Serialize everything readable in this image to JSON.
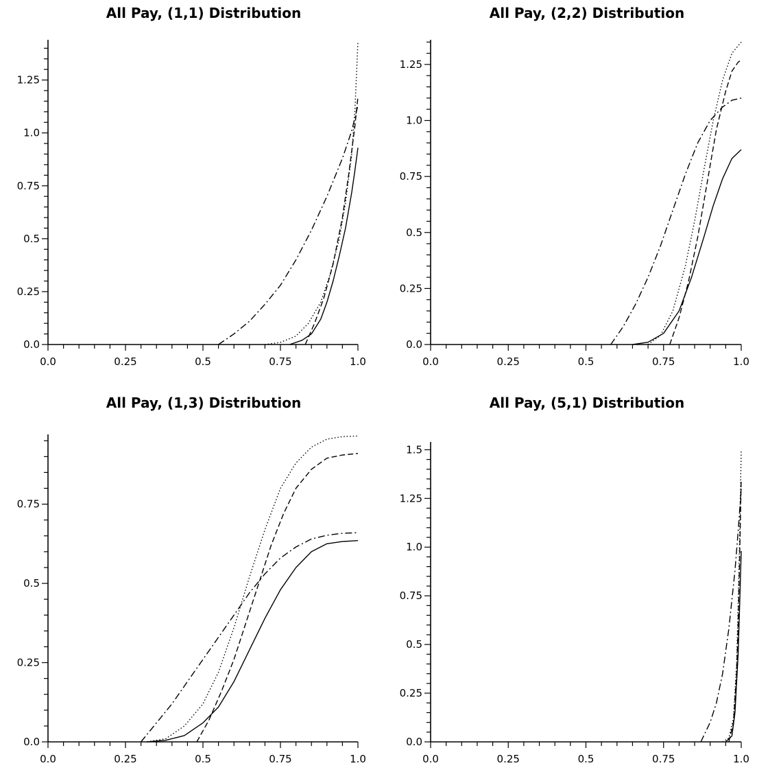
{
  "chart_data": [
    {
      "type": "line",
      "title": "All Pay, (1,1) Distribution",
      "xlim": [
        0,
        1
      ],
      "ylim": [
        0,
        1.44
      ],
      "xticks": [
        "0.0",
        "0.25",
        "0.5",
        "0.75",
        "1.0"
      ],
      "yticks": [
        "0.0",
        "0.25",
        "0.5",
        "0.75",
        "1.0",
        "1.25"
      ],
      "x_tick_values": [
        0,
        0.25,
        0.5,
        0.75,
        1.0
      ],
      "y_tick_values": [
        0,
        0.25,
        0.5,
        0.75,
        1.0,
        1.25
      ],
      "grid": false,
      "series": [
        {
          "style": "solid",
          "x": [
            0.78,
            0.82,
            0.85,
            0.88,
            0.9,
            0.92,
            0.94,
            0.96,
            0.98,
            0.99,
            1.0
          ],
          "y": [
            0.0,
            0.02,
            0.05,
            0.12,
            0.2,
            0.3,
            0.42,
            0.55,
            0.72,
            0.82,
            0.93
          ]
        },
        {
          "style": "dashed",
          "x": [
            0.83,
            0.86,
            0.89,
            0.92,
            0.95,
            0.97,
            0.99,
            1.0
          ],
          "y": [
            0.0,
            0.1,
            0.22,
            0.38,
            0.6,
            0.8,
            1.03,
            1.17
          ]
        },
        {
          "style": "dotted",
          "x": [
            0.7,
            0.75,
            0.8,
            0.84,
            0.88,
            0.91,
            0.94,
            0.96,
            0.98,
            0.99,
            1.0
          ],
          "y": [
            0.0,
            0.01,
            0.04,
            0.1,
            0.2,
            0.33,
            0.5,
            0.67,
            0.9,
            1.1,
            1.43
          ]
        },
        {
          "style": "dashdot",
          "x": [
            0.55,
            0.6,
            0.65,
            0.7,
            0.75,
            0.8,
            0.85,
            0.9,
            0.95,
            0.98,
            1.0
          ],
          "y": [
            0.0,
            0.05,
            0.11,
            0.19,
            0.28,
            0.4,
            0.54,
            0.7,
            0.88,
            1.01,
            1.13
          ]
        }
      ]
    },
    {
      "type": "line",
      "title": "All Pay, (2,2) Distribution",
      "xlim": [
        0,
        1
      ],
      "ylim": [
        0,
        1.36
      ],
      "xticks": [
        "0.0",
        "0.25",
        "0.5",
        "0.75",
        "1.0"
      ],
      "yticks": [
        "0.0",
        "0.25",
        "0.5",
        "0.75",
        "1.0",
        "1.25"
      ],
      "x_tick_values": [
        0,
        0.25,
        0.5,
        0.75,
        1.0
      ],
      "y_tick_values": [
        0,
        0.25,
        0.5,
        0.75,
        1.0,
        1.25
      ],
      "grid": false,
      "series": [
        {
          "style": "solid",
          "x": [
            0.65,
            0.7,
            0.75,
            0.8,
            0.84,
            0.88,
            0.91,
            0.94,
            0.97,
            1.0
          ],
          "y": [
            0.0,
            0.01,
            0.05,
            0.15,
            0.3,
            0.48,
            0.62,
            0.74,
            0.83,
            0.87
          ]
        },
        {
          "style": "dashed",
          "x": [
            0.77,
            0.8,
            0.83,
            0.86,
            0.89,
            0.92,
            0.95,
            0.97,
            0.99,
            1.0
          ],
          "y": [
            0.0,
            0.12,
            0.28,
            0.48,
            0.72,
            0.96,
            1.13,
            1.22,
            1.26,
            1.27
          ]
        },
        {
          "style": "dotted",
          "x": [
            0.7,
            0.74,
            0.78,
            0.82,
            0.85,
            0.88,
            0.91,
            0.94,
            0.97,
            1.0
          ],
          "y": [
            0.0,
            0.04,
            0.15,
            0.35,
            0.55,
            0.78,
            1.0,
            1.18,
            1.3,
            1.35
          ]
        },
        {
          "style": "dashdot",
          "x": [
            0.58,
            0.62,
            0.66,
            0.7,
            0.74,
            0.78,
            0.82,
            0.86,
            0.9,
            0.94,
            0.97,
            1.0
          ],
          "y": [
            0.0,
            0.08,
            0.18,
            0.3,
            0.44,
            0.6,
            0.76,
            0.9,
            1.0,
            1.06,
            1.09,
            1.1
          ]
        }
      ]
    },
    {
      "type": "line",
      "title": "All Pay, (1,3) Distribution",
      "xlim": [
        0,
        1
      ],
      "ylim": [
        0,
        0.97
      ],
      "xticks": [
        "0.0",
        "0.25",
        "0.5",
        "0.75",
        "1.0"
      ],
      "yticks": [
        "0.0",
        "0.25",
        "0.5",
        "0.75"
      ],
      "x_tick_values": [
        0,
        0.25,
        0.5,
        0.75,
        1.0
      ],
      "y_tick_values": [
        0,
        0.25,
        0.5,
        0.75
      ],
      "grid": false,
      "series": [
        {
          "style": "solid",
          "x": [
            0.32,
            0.38,
            0.44,
            0.5,
            0.55,
            0.6,
            0.65,
            0.7,
            0.75,
            0.8,
            0.85,
            0.9,
            0.95,
            1.0
          ],
          "y": [
            0.0,
            0.005,
            0.02,
            0.06,
            0.11,
            0.19,
            0.29,
            0.39,
            0.48,
            0.55,
            0.6,
            0.625,
            0.632,
            0.635
          ]
        },
        {
          "style": "dashed",
          "x": [
            0.48,
            0.52,
            0.56,
            0.6,
            0.64,
            0.68,
            0.72,
            0.76,
            0.8,
            0.85,
            0.9,
            0.95,
            1.0
          ],
          "y": [
            0.0,
            0.07,
            0.16,
            0.26,
            0.38,
            0.5,
            0.62,
            0.72,
            0.8,
            0.86,
            0.895,
            0.905,
            0.91
          ]
        },
        {
          "style": "dotted",
          "x": [
            0.32,
            0.38,
            0.44,
            0.5,
            0.55,
            0.6,
            0.65,
            0.7,
            0.75,
            0.8,
            0.85,
            0.9,
            0.95,
            1.0
          ],
          "y": [
            0.0,
            0.01,
            0.05,
            0.12,
            0.22,
            0.36,
            0.52,
            0.67,
            0.8,
            0.88,
            0.93,
            0.955,
            0.963,
            0.965
          ]
        },
        {
          "style": "dashdot",
          "x": [
            0.3,
            0.35,
            0.4,
            0.45,
            0.5,
            0.55,
            0.6,
            0.65,
            0.7,
            0.75,
            0.8,
            0.85,
            0.9,
            0.95,
            1.0
          ],
          "y": [
            0.0,
            0.06,
            0.12,
            0.19,
            0.26,
            0.33,
            0.4,
            0.47,
            0.53,
            0.58,
            0.615,
            0.64,
            0.652,
            0.658,
            0.66
          ]
        }
      ]
    },
    {
      "type": "line",
      "title": "All Pay, (5,1) Distribution",
      "xlim": [
        0,
        1
      ],
      "ylim": [
        0,
        1.54
      ],
      "xticks": [
        "0.0",
        "0.25",
        "0.5",
        "0.75",
        "1.0"
      ],
      "yticks": [
        "0.0",
        "0.25",
        "0.5",
        "0.75",
        "1.0",
        "1.25",
        "1.5"
      ],
      "x_tick_values": [
        0,
        0.25,
        0.5,
        0.75,
        1.0
      ],
      "y_tick_values": [
        0,
        0.25,
        0.5,
        0.75,
        1.0,
        1.25,
        1.5
      ],
      "grid": false,
      "series": [
        {
          "style": "solid",
          "x": [
            0.95,
            0.97,
            0.98,
            0.99,
            0.995,
            1.0
          ],
          "y": [
            0.0,
            0.03,
            0.15,
            0.45,
            0.7,
            0.98
          ]
        },
        {
          "style": "dashed",
          "x": [
            0.96,
            0.975,
            0.985,
            0.99,
            0.995,
            1.0
          ],
          "y": [
            0.0,
            0.1,
            0.35,
            0.6,
            0.95,
            1.35
          ]
        },
        {
          "style": "dotted",
          "x": [
            0.94,
            0.96,
            0.975,
            0.985,
            0.99,
            0.995,
            1.0
          ],
          "y": [
            0.0,
            0.02,
            0.12,
            0.4,
            0.7,
            1.05,
            1.5
          ]
        },
        {
          "style": "dashdot",
          "x": [
            0.87,
            0.9,
            0.92,
            0.94,
            0.96,
            0.98,
            0.99,
            1.0
          ],
          "y": [
            0.0,
            0.1,
            0.2,
            0.35,
            0.58,
            0.88,
            1.08,
            1.3
          ]
        }
      ]
    }
  ]
}
